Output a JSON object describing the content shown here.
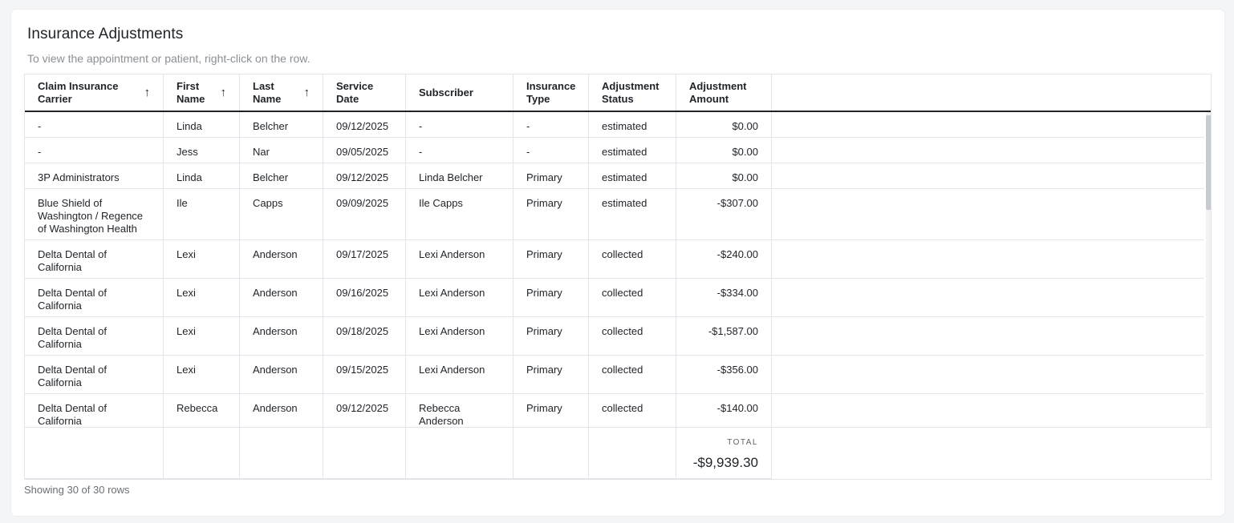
{
  "page": {
    "title": "Insurance Adjustments",
    "subtitle": "To view the appointment or patient, right-click on the row."
  },
  "columns": [
    {
      "label": "Claim Insurance Carrier",
      "sortable": true
    },
    {
      "label": "First Name",
      "sortable": true
    },
    {
      "label": "Last Name",
      "sortable": true
    },
    {
      "label": "Service Date",
      "sortable": false
    },
    {
      "label": "Subscriber",
      "sortable": false
    },
    {
      "label": "Insurance Type",
      "sortable": false
    },
    {
      "label": "Adjustment Status",
      "sortable": false
    },
    {
      "label": "Adjustment Amount",
      "sortable": false
    }
  ],
  "rows": [
    [
      "-",
      "Linda",
      "Belcher",
      "09/12/2025",
      "-",
      "-",
      "estimated",
      "$0.00"
    ],
    [
      "-",
      "Jess",
      "Nar",
      "09/05/2025",
      "-",
      "-",
      "estimated",
      "$0.00"
    ],
    [
      "3P Administrators",
      "Linda",
      "Belcher",
      "09/12/2025",
      "Linda Belcher",
      "Primary",
      "estimated",
      "$0.00"
    ],
    [
      "Blue Shield of Washington / Regence of Washington Health",
      "Ile",
      "Capps",
      "09/09/2025",
      "Ile Capps",
      "Primary",
      "estimated",
      "-$307.00"
    ],
    [
      "Delta Dental of California",
      "Lexi",
      "Anderson",
      "09/17/2025",
      "Lexi Anderson",
      "Primary",
      "collected",
      "-$240.00"
    ],
    [
      "Delta Dental of California",
      "Lexi",
      "Anderson",
      "09/16/2025",
      "Lexi Anderson",
      "Primary",
      "collected",
      "-$334.00"
    ],
    [
      "Delta Dental of California",
      "Lexi",
      "Anderson",
      "09/18/2025",
      "Lexi Anderson",
      "Primary",
      "collected",
      "-$1,587.00"
    ],
    [
      "Delta Dental of California",
      "Lexi",
      "Anderson",
      "09/15/2025",
      "Lexi Anderson",
      "Primary",
      "collected",
      "-$356.00"
    ],
    [
      "Delta Dental of California",
      "Rebecca",
      "Anderson",
      "09/12/2025",
      "Rebecca Anderson",
      "Primary",
      "collected",
      "-$140.00"
    ]
  ],
  "footer": {
    "total_label": "TOTAL",
    "total_value": "-$9,939.30",
    "showing": "Showing 30 of 30 rows"
  },
  "icons": {
    "sort": "arrow-up-icon"
  }
}
